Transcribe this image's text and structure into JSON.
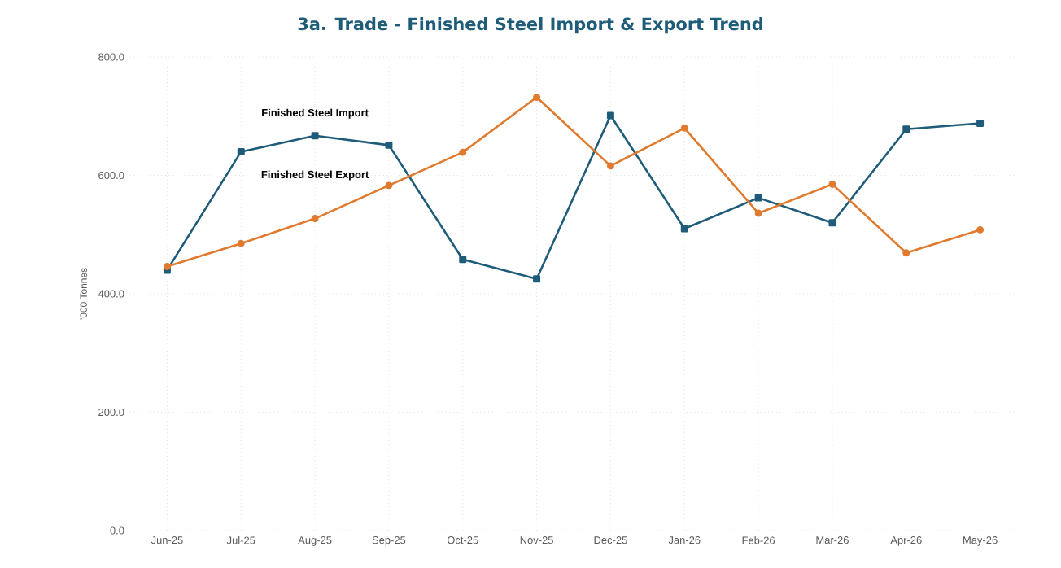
{
  "chart_data": {
    "type": "line",
    "title": "3a. Trade -  Finished Steel Import & Export Trend",
    "ylabel": "'000 Tonnes",
    "categories": [
      "Jun-25",
      "Jul-25",
      "Aug-25",
      "Sep-25",
      "Oct-25",
      "Nov-25",
      "Dec-25",
      "Jan-26",
      "Feb-26",
      "Mar-26",
      "Apr-26",
      "May-26"
    ],
    "series": [
      {
        "name": "Finished Steel Import",
        "color": "#1f5c7a",
        "marker": "square",
        "values": [
          440,
          640,
          667,
          651,
          458,
          425,
          701,
          510,
          562,
          520,
          678,
          688
        ]
      },
      {
        "name": "Finished Steel Export",
        "color": "#e07a2e",
        "marker": "circle",
        "values": [
          446,
          485,
          527,
          583,
          639,
          732,
          616,
          680,
          536,
          585,
          469,
          508
        ]
      }
    ],
    "ylim": [
      0,
      800
    ],
    "yticks": [
      {
        "value": 0,
        "label": "0.0"
      },
      {
        "value": 200,
        "label": "200.0"
      },
      {
        "value": 400,
        "label": "400.0"
      },
      {
        "value": 600,
        "label": "600.0"
      },
      {
        "value": 800,
        "label": "800.0"
      }
    ],
    "grid": true,
    "legend": false,
    "line_style": "solid"
  }
}
